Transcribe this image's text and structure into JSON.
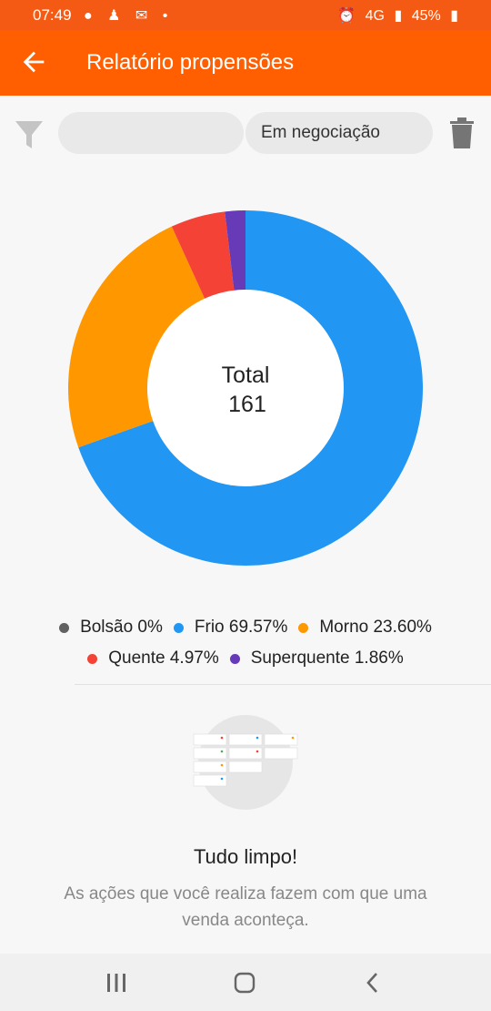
{
  "status_bar": {
    "time": "07:49",
    "battery": "45%",
    "network": "4G"
  },
  "app_bar": {
    "title": "Relatório propensões"
  },
  "filters": {
    "search_value": "",
    "status_label": "Em negociação"
  },
  "donut": {
    "center_label": "Total",
    "center_value": "161"
  },
  "chart_data": {
    "type": "pie",
    "title": "",
    "center_text": "Total 161",
    "slices": [
      {
        "label": "Bolsão",
        "percent": 0,
        "display": "0%",
        "color": "#616161"
      },
      {
        "label": "Frio",
        "percent": 69.57,
        "display": "69.57%",
        "color": "#2196f3"
      },
      {
        "label": "Morno",
        "percent": 23.6,
        "display": "23.60%",
        "color": "#ff9800"
      },
      {
        "label": "Quente",
        "percent": 4.97,
        "display": "4.97%",
        "color": "#f44336"
      },
      {
        "label": "Superquente",
        "percent": 1.86,
        "display": "1.86%",
        "color": "#673ab7"
      }
    ]
  },
  "legend": [
    {
      "label": "Bolsão 0%",
      "color": "#616161"
    },
    {
      "label": "Frio 69.57%",
      "color": "#2196f3"
    },
    {
      "label": "Morno 23.60%",
      "color": "#ff9800"
    },
    {
      "label": "Quente 4.97%",
      "color": "#f44336"
    },
    {
      "label": "Superquente 1.86%",
      "color": "#673ab7"
    }
  ],
  "empty_state": {
    "title": "Tudo limpo!",
    "message": "As ações que você realiza fazem com que uma venda aconteça."
  },
  "colors": {
    "status_bar": "#f55a14",
    "app_bar": "#ff5f00"
  },
  "icons": {
    "back": "arrow-back-icon",
    "filter": "filter-icon",
    "delete": "trash-icon",
    "nav_recents": "recents-icon",
    "nav_home": "home-icon",
    "nav_back": "nav-back-icon"
  }
}
